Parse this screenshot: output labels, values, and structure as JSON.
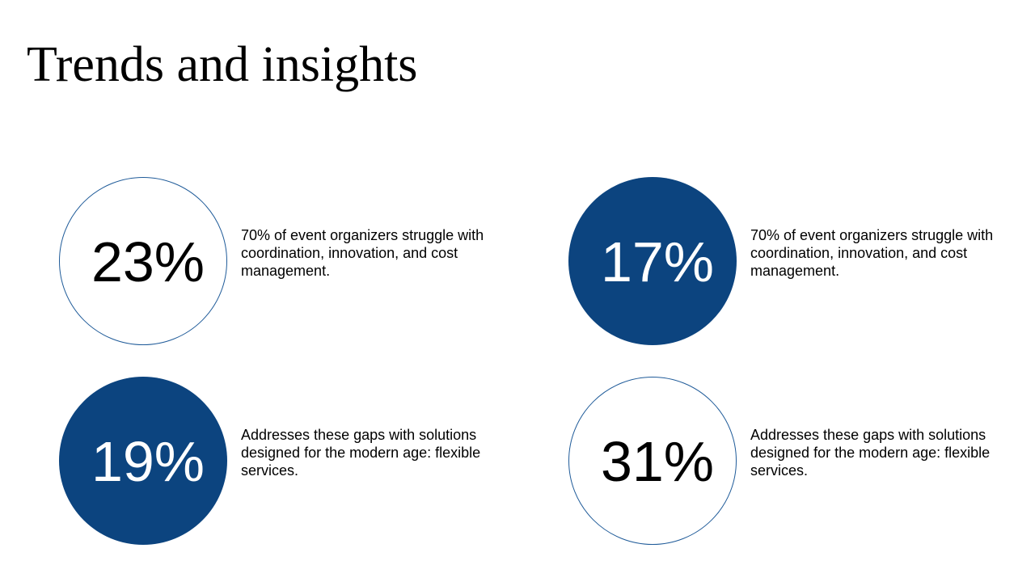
{
  "slide": {
    "title": "Trends and insights"
  },
  "stats": [
    {
      "value": "23%",
      "style": "outline",
      "description": "70% of event organizers struggle with coordination, innovation, and cost management."
    },
    {
      "value": "17%",
      "style": "filled",
      "description": "70% of event organizers struggle with coordination, innovation, and cost management."
    },
    {
      "value": "19%",
      "style": "filled",
      "description": "Addresses these gaps with solutions designed for the modern age: flexible services."
    },
    {
      "value": "31%",
      "style": "outline",
      "description": "Addresses these gaps with solutions designed for the modern age: flexible services."
    }
  ],
  "colors": {
    "accent": "#0c447f",
    "outline": "#1f5b99",
    "text": "#000000",
    "background": "#ffffff"
  }
}
